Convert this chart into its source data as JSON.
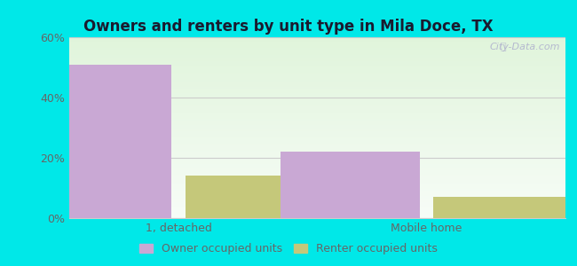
{
  "title": "Owners and renters by unit type in Mila Doce, TX",
  "categories": [
    "1, detached",
    "Mobile home"
  ],
  "owner_values": [
    51,
    22
  ],
  "renter_values": [
    14,
    7
  ],
  "owner_color": "#c9a8d4",
  "renter_color": "#c5c87a",
  "ylim": [
    0,
    60
  ],
  "yticks": [
    0,
    20,
    40,
    60
  ],
  "ytick_labels": [
    "0%",
    "20%",
    "40%",
    "60%"
  ],
  "background_outer": "#00e8e8",
  "legend_owner": "Owner occupied units",
  "legend_renter": "Renter occupied units",
  "bar_width": 0.28,
  "group_positions": [
    0.22,
    0.72
  ],
  "watermark": "City-Data.com",
  "title_color": "#1a1a2e",
  "tick_color": "#666666",
  "grid_color": "#cccccc"
}
